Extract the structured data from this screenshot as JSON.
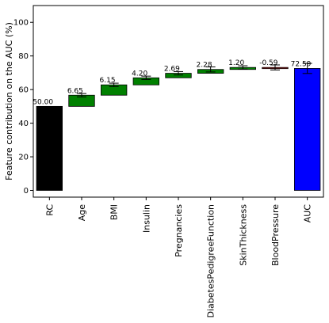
{
  "chart_data": {
    "type": "bar",
    "subtype": "waterfall",
    "ylabel": "Feature contribution on the AUC (%)",
    "xlabel": "",
    "ylim": [
      -4,
      110
    ],
    "yticks": [
      0,
      20,
      40,
      60,
      80,
      100
    ],
    "grid": false,
    "categories": [
      "RC",
      "Age",
      "BMI",
      "Insulin",
      "Pregnancies",
      "DiabetesPedigreeFunction",
      "SkinThickness",
      "BloodPressure",
      "AUC"
    ],
    "bars": [
      {
        "category": "RC",
        "bottom": 0,
        "top": 50.0,
        "label": "50.00",
        "error": 0,
        "color": "#000000"
      },
      {
        "category": "Age",
        "bottom": 50.0,
        "top": 56.65,
        "label": "6.65",
        "error": 1.0,
        "color": "#008000"
      },
      {
        "category": "BMI",
        "bottom": 56.65,
        "top": 62.8,
        "label": "6.15",
        "error": 1.0,
        "color": "#008000"
      },
      {
        "category": "Insulin",
        "bottom": 62.8,
        "top": 67.0,
        "label": "4.20",
        "error": 1.0,
        "color": "#008000"
      },
      {
        "category": "Pregnancies",
        "bottom": 67.0,
        "top": 69.69,
        "label": "2.69",
        "error": 1.0,
        "color": "#008000"
      },
      {
        "category": "DiabetesPedigreeFunction",
        "bottom": 69.69,
        "top": 71.97,
        "label": "2.28",
        "error": 1.5,
        "color": "#008000"
      },
      {
        "category": "SkinThickness",
        "bottom": 71.97,
        "top": 73.17,
        "label": "1.20",
        "error": 1.0,
        "color": "#008000"
      },
      {
        "category": "BloodPressure",
        "bottom": 72.58,
        "top": 73.17,
        "label": "-0.59",
        "error": 1.5,
        "color": "#b22222"
      },
      {
        "category": "AUC",
        "bottom": 0,
        "top": 72.58,
        "label": "72.59",
        "error": 3.0,
        "color": "#0000ff"
      }
    ]
  }
}
